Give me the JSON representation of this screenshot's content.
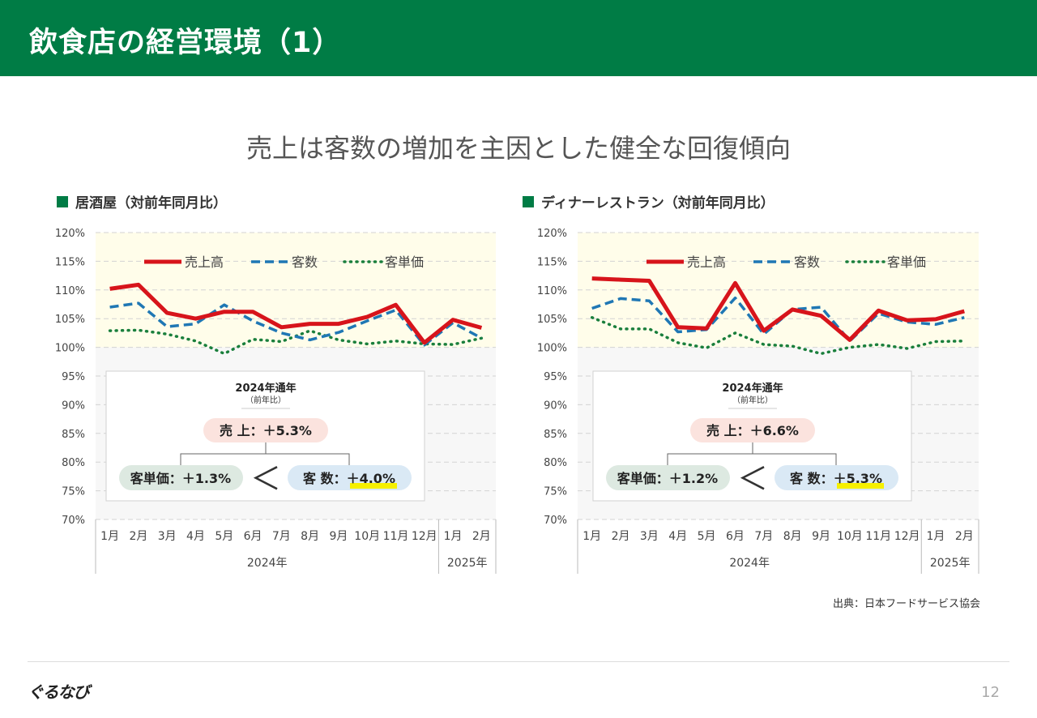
{
  "header": {
    "title": "飲食店の経営環境（1）"
  },
  "subtitle": "売上は客数の増加を主因とした健全な回復傾向",
  "source": "出典：日本フードサービス協会",
  "logo": "ぐるなび",
  "page_number": "12",
  "colors": {
    "brand": "#007c45",
    "sales": "#d7141b",
    "customers": "#1f77b4",
    "unit_price": "#1a7f3c",
    "highlight": "#f6f000"
  },
  "legend": [
    "売上高",
    "客数",
    "客単価"
  ],
  "chart_data": [
    {
      "type": "line",
      "title": "居酒屋（対前年同月比）",
      "categories": [
        "1月",
        "2月",
        "3月",
        "4月",
        "5月",
        "6月",
        "7月",
        "8月",
        "9月",
        "10月",
        "11月",
        "12月",
        "1月",
        "2月"
      ],
      "year_groups": [
        {
          "label": "2024年",
          "span": 12
        },
        {
          "label": "2025年",
          "span": 2
        }
      ],
      "ylim": [
        70,
        120
      ],
      "yticks": [
        "70%",
        "75%",
        "80%",
        "85%",
        "90%",
        "95%",
        "100%",
        "105%",
        "110%",
        "115%",
        "120%"
      ],
      "series": [
        {
          "name": "売上高",
          "style": "solid",
          "values": [
            110.2,
            110.9,
            106.0,
            105.0,
            106.2,
            106.2,
            103.5,
            104.1,
            104.1,
            105.3,
            107.4,
            100.8,
            104.8,
            103.4
          ]
        },
        {
          "name": "客数",
          "style": "dashed",
          "values": [
            107.0,
            107.7,
            103.6,
            104.1,
            107.4,
            104.6,
            102.5,
            101.3,
            102.6,
            104.6,
            106.5,
            100.4,
            104.3,
            101.6
          ]
        },
        {
          "name": "客単価",
          "style": "dotted",
          "values": [
            102.9,
            103.0,
            102.3,
            101.1,
            98.9,
            101.4,
            101.0,
            102.9,
            101.3,
            100.6,
            101.1,
            100.6,
            100.5,
            101.6
          ]
        }
      ],
      "summary": {
        "title": "2024年通年",
        "subtitle": "（前年比）",
        "sales": "売 上：＋5.3%",
        "unit_price": "客単価：＋1.3%",
        "compare": "＜",
        "customers_label": "客 数：",
        "customers_value": "＋4.0%"
      }
    },
    {
      "type": "line",
      "title": "ディナーレストラン（対前年同月比）",
      "categories": [
        "1月",
        "2月",
        "3月",
        "4月",
        "5月",
        "6月",
        "7月",
        "8月",
        "9月",
        "10月",
        "11月",
        "12月",
        "1月",
        "2月"
      ],
      "year_groups": [
        {
          "label": "2024年",
          "span": 12
        },
        {
          "label": "2025年",
          "span": 2
        }
      ],
      "ylim": [
        70,
        120
      ],
      "yticks": [
        "70%",
        "75%",
        "80%",
        "85%",
        "90%",
        "95%",
        "100%",
        "105%",
        "110%",
        "115%",
        "120%"
      ],
      "series": [
        {
          "name": "売上高",
          "style": "solid",
          "values": [
            112.0,
            111.8,
            111.6,
            103.5,
            103.3,
            111.2,
            102.9,
            106.6,
            105.5,
            101.3,
            106.4,
            104.7,
            104.9,
            106.3
          ]
        },
        {
          "name": "客数",
          "style": "dashed",
          "values": [
            106.8,
            108.5,
            108.1,
            102.7,
            103.1,
            108.6,
            102.3,
            106.6,
            107.0,
            101.1,
            105.9,
            104.4,
            104.0,
            105.2
          ]
        },
        {
          "name": "客単価",
          "style": "dotted",
          "values": [
            105.2,
            103.2,
            103.2,
            100.8,
            99.9,
            102.5,
            100.5,
            100.2,
            98.9,
            100.0,
            100.5,
            99.8,
            101.0,
            101.1
          ]
        }
      ],
      "summary": {
        "title": "2024年通年",
        "subtitle": "（前年比）",
        "sales": "売 上：＋6.6%",
        "unit_price": "客単価：＋1.2%",
        "compare": "＜",
        "customers_label": "客 数：",
        "customers_value": "＋5.3%"
      }
    }
  ]
}
